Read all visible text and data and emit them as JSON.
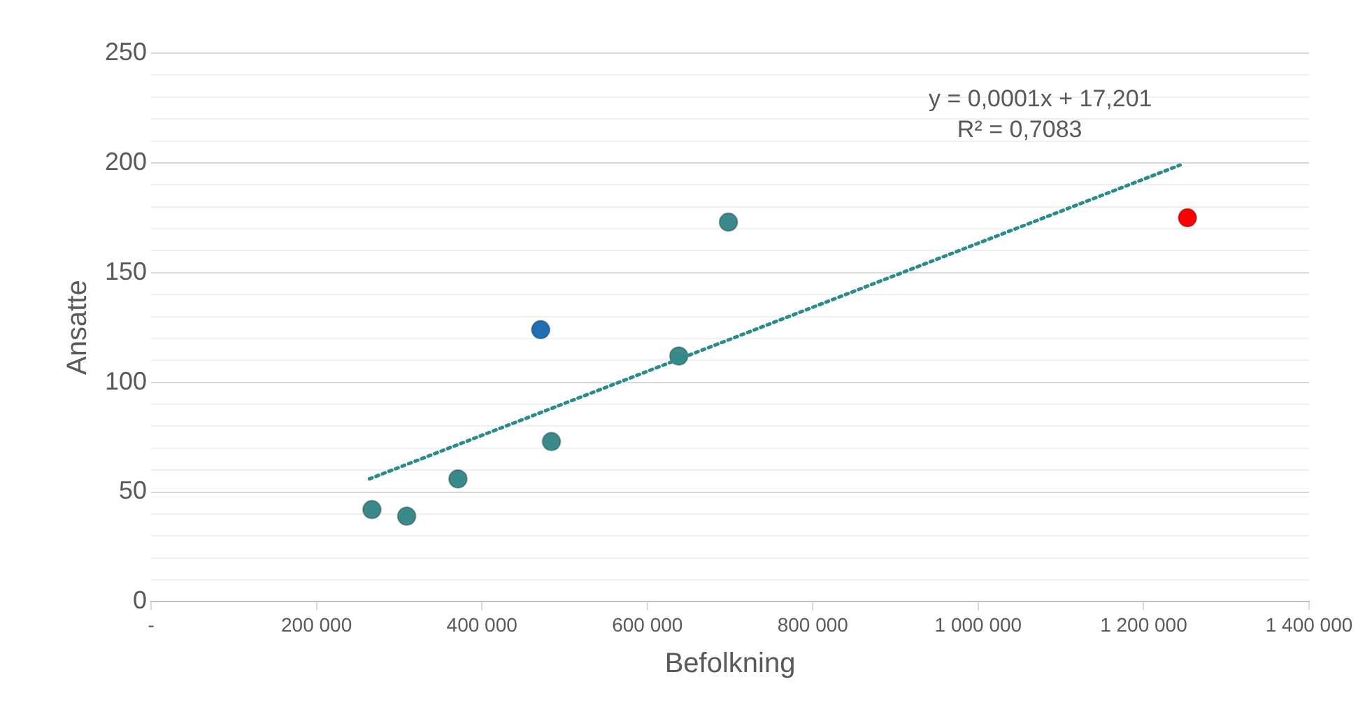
{
  "chart_data": {
    "type": "scatter",
    "xlabel": "Befolkning",
    "ylabel": "Ansatte",
    "series": [
      {
        "x": [
          267000,
          309000,
          371000,
          484000,
          471000,
          638000,
          698000,
          1253000
        ],
        "values": [
          42,
          39,
          56,
          73,
          124,
          112,
          173,
          175
        ],
        "colors": [
          "#3a8a8c",
          "#3a8a8c",
          "#3a8a8c",
          "#3a8a8c",
          "#1f6fb4",
          "#3a8a8c",
          "#3a8a8c",
          "#ff0000"
        ]
      },
      {
        "type": "line",
        "x": [
          264000,
          1244000
        ],
        "values": [
          56,
          199
        ],
        "color": "#2e8b8b",
        "line_style": "dotted",
        "marker": "none"
      }
    ],
    "annotations": [
      "y = 0,0001x + 17,201",
      "R² = 0,7083"
    ],
    "xlim": [
      0,
      1400000
    ],
    "xticks": [
      {
        "value": 0,
        "label": "-"
      },
      {
        "value": 200000,
        "label": "200 000"
      },
      {
        "value": 400000,
        "label": "400 000"
      },
      {
        "value": 600000,
        "label": "600 000"
      },
      {
        "value": 800000,
        "label": "800 000"
      },
      {
        "value": 1000000,
        "label": "1 000 000"
      },
      {
        "value": 1200000,
        "label": "1 200 000"
      },
      {
        "value": 1400000,
        "label": "1 400 000"
      }
    ],
    "ylim": [
      0,
      250
    ],
    "yticks": [
      0,
      {
        "value": 10,
        "label": null
      },
      {
        "value": 20,
        "label": null
      },
      {
        "value": 30,
        "label": null
      },
      {
        "value": 40,
        "label": null
      },
      50,
      {
        "value": 60,
        "label": null
      },
      {
        "value": 70,
        "label": null
      },
      {
        "value": 80,
        "label": null
      },
      {
        "value": 90,
        "label": null
      },
      100,
      {
        "value": 110,
        "label": null
      },
      {
        "value": 120,
        "label": null
      },
      {
        "value": 130,
        "label": null
      },
      {
        "value": 140,
        "label": null
      },
      150,
      {
        "value": 160,
        "label": null
      },
      {
        "value": 170,
        "label": null
      },
      {
        "value": 180,
        "label": null
      },
      {
        "value": 190,
        "label": null
      },
      200,
      {
        "value": 210,
        "label": null
      },
      {
        "value": 220,
        "label": null
      },
      {
        "value": 230,
        "label": null
      },
      {
        "value": 240,
        "label": null
      },
      250
    ],
    "grid": "y",
    "legend": false,
    "marker": "circle"
  }
}
